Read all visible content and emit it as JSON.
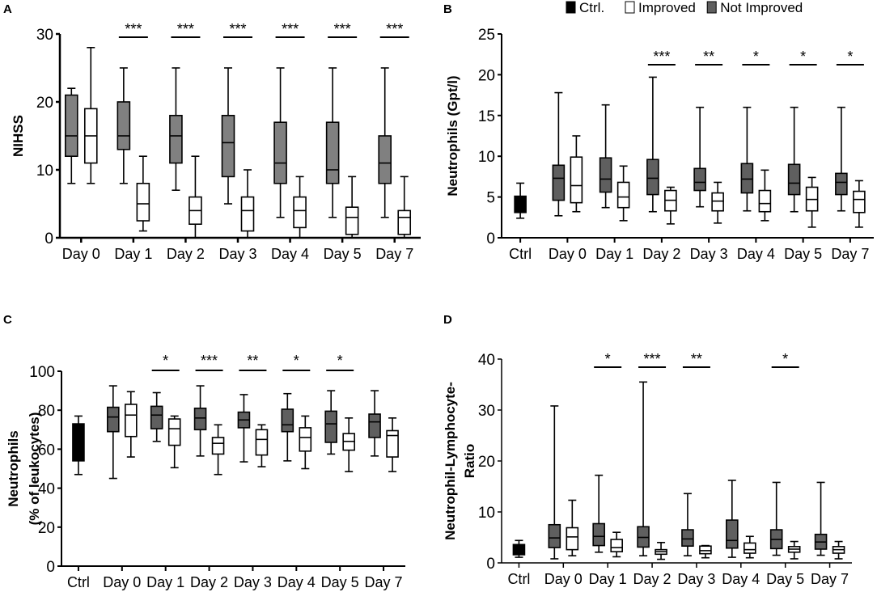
{
  "colors": {
    "ctrl": "#000000",
    "improved": "#ffffff",
    "not_improved_A": "#808080",
    "not_improved": "#5f5f5f"
  },
  "legend": [
    {
      "label": "Ctrl.",
      "color": "#000000"
    },
    {
      "label": "Improved",
      "color": "#ffffff"
    },
    {
      "label": "Not Improved",
      "color": "#5f5f5f"
    }
  ],
  "chart_data": [
    {
      "panel": "A",
      "type": "box",
      "ylabel": "NIHSS",
      "ylim": [
        0,
        30
      ],
      "yticks": [
        0,
        10,
        20,
        30
      ],
      "box_format": [
        "min",
        "q1",
        "median",
        "q3",
        "max"
      ],
      "categories": [
        "Day 0",
        "Day 1",
        "Day 2",
        "Day 3",
        "Day 4",
        "Day 5",
        "Day 7"
      ],
      "ctrl": null,
      "not_improved": [
        [
          8,
          12,
          15,
          21,
          22
        ],
        [
          8,
          13,
          15,
          20,
          25
        ],
        [
          7,
          11,
          15,
          18,
          25
        ],
        [
          5,
          9,
          14,
          18,
          25
        ],
        [
          3,
          8,
          11,
          17,
          25
        ],
        [
          3,
          8,
          10,
          17,
          25
        ],
        [
          3,
          8,
          11,
          15,
          25
        ]
      ],
      "improved": [
        [
          8,
          11,
          15,
          19,
          28
        ],
        [
          1,
          2.5,
          5,
          8,
          12
        ],
        [
          0,
          2,
          4,
          6,
          12
        ],
        [
          0,
          1,
          4,
          6,
          10
        ],
        [
          0,
          1.5,
          4,
          6,
          9
        ],
        [
          0,
          0.5,
          3,
          4.5,
          9
        ],
        [
          0,
          0.5,
          3,
          4,
          9
        ]
      ],
      "significance": [
        "",
        "***",
        "***",
        "***",
        "***",
        "***",
        "***"
      ]
    },
    {
      "panel": "B",
      "type": "box",
      "ylabel": "Neutrophils (Gpt/l)",
      "ylim": [
        0,
        25
      ],
      "yticks": [
        0,
        5,
        10,
        15,
        20,
        25
      ],
      "box_format": [
        "min",
        "q1",
        "median",
        "q3",
        "max"
      ],
      "categories": [
        "Ctrl",
        "Day 0",
        "Day 1",
        "Day 2",
        "Day 3",
        "Day 4",
        "Day 5",
        "Day 7"
      ],
      "ctrl": [
        2.4,
        3.1,
        4,
        5.1,
        6.7
      ],
      "not_improved": [
        [
          2.7,
          4.6,
          7.3,
          8.9,
          17.8
        ],
        [
          3.7,
          5.6,
          7.2,
          9.8,
          16.3
        ],
        [
          3.2,
          5.3,
          7.3,
          9.6,
          19.7
        ],
        [
          3.8,
          5.8,
          6.8,
          8.5,
          16
        ],
        [
          3.3,
          5.5,
          7.2,
          9.1,
          16
        ],
        [
          3.2,
          5.3,
          6.7,
          9,
          16
        ],
        [
          3.3,
          5.3,
          6.8,
          7.9,
          16
        ]
      ],
      "improved": [
        [
          3.2,
          4.3,
          6.4,
          9.9,
          12.5
        ],
        [
          2.1,
          3.7,
          5,
          6.8,
          8.8
        ],
        [
          1.7,
          3.3,
          4.6,
          5.8,
          6.2
        ],
        [
          1.8,
          3.3,
          4.5,
          5.5,
          6.8
        ],
        [
          2.1,
          3.2,
          4.2,
          5.8,
          8.3
        ],
        [
          1.3,
          3.3,
          4.7,
          6.2,
          7.4
        ],
        [
          1.3,
          3.1,
          4.7,
          5.7,
          7
        ]
      ],
      "significance": [
        "",
        "",
        "***",
        "**",
        "*",
        "*",
        "*"
      ]
    },
    {
      "panel": "C",
      "type": "box",
      "ylabel": "Neutrophils",
      "ylabel2": "(% of leukocytes)",
      "ylim": [
        0,
        100
      ],
      "yticks": [
        0,
        20,
        40,
        60,
        80,
        100
      ],
      "box_format": [
        "min",
        "q1",
        "median",
        "q3",
        "max"
      ],
      "categories": [
        "Ctrl",
        "Day 0",
        "Day 1",
        "Day 2",
        "Day 3",
        "Day 4",
        "Day 5",
        "Day 7"
      ],
      "ctrl": [
        47,
        54,
        63,
        73,
        77
      ],
      "not_improved": [
        [
          45,
          69,
          76.5,
          81.5,
          92.5
        ],
        [
          64,
          70.5,
          77.5,
          82,
          89
        ],
        [
          56.5,
          70,
          76,
          81,
          92.5
        ],
        [
          53.5,
          71,
          75,
          79,
          88
        ],
        [
          54,
          69,
          72.5,
          80.5,
          88.5
        ],
        [
          57.5,
          63.5,
          73,
          79.5,
          90
        ],
        [
          56.5,
          66,
          74,
          78,
          90
        ]
      ],
      "improved": [
        [
          56,
          66.5,
          77.5,
          83,
          89.5
        ],
        [
          50.5,
          62,
          70.5,
          75.5,
          77
        ],
        [
          47,
          57.5,
          63,
          66,
          72.5
        ],
        [
          51,
          57,
          65,
          70,
          72.5
        ],
        [
          50,
          59,
          66,
          71,
          77
        ],
        [
          48.5,
          59.5,
          64,
          68,
          76
        ],
        [
          48.5,
          56,
          67,
          69.5,
          76
        ]
      ],
      "significance": [
        "",
        "*",
        "***",
        "**",
        "*",
        "*",
        ""
      ]
    },
    {
      "panel": "D",
      "type": "box",
      "ylabel": "Neutrophil-Lymphocyte-",
      "ylabel2": "Ratio",
      "ylim": [
        0,
        40
      ],
      "yticks": [
        0,
        10,
        20,
        30,
        40
      ],
      "box_format": [
        "min",
        "q1",
        "median",
        "q3",
        "max"
      ],
      "categories": [
        "Ctrl",
        "Day 0",
        "Day 1",
        "Day 2",
        "Day 3",
        "Day 4",
        "Day 5",
        "Day 7"
      ],
      "ctrl": [
        1.1,
        1.6,
        2.5,
        3.6,
        4.4
      ],
      "not_improved": [
        [
          0.8,
          3,
          4.9,
          7.5,
          30.8
        ],
        [
          2.1,
          3.4,
          5.2,
          7.7,
          17.2
        ],
        [
          1.4,
          3.1,
          5,
          7.1,
          35.5
        ],
        [
          1.4,
          3.3,
          4.7,
          6.5,
          13.6
        ],
        [
          1.1,
          2.9,
          4.4,
          8.4,
          16.2
        ],
        [
          1.5,
          2.8,
          4.6,
          6.5,
          15.8
        ],
        [
          1.5,
          2.7,
          4.1,
          5.6,
          15.8
        ]
      ],
      "improved": [
        [
          1.4,
          2.6,
          5.1,
          6.9,
          12.3
        ],
        [
          1.2,
          2.2,
          3,
          4.6,
          6
        ],
        [
          0.7,
          1.7,
          2.2,
          2.6,
          4
        ],
        [
          1,
          1.8,
          2.4,
          3.3,
          3.4
        ],
        [
          1,
          1.9,
          2.6,
          3.9,
          5.2
        ],
        [
          0.8,
          2.1,
          2.7,
          3.2,
          4.2
        ],
        [
          0.8,
          1.9,
          2.6,
          3.2,
          4.2
        ]
      ],
      "significance": [
        "",
        "*",
        "***",
        "**",
        "",
        "*",
        ""
      ]
    }
  ]
}
